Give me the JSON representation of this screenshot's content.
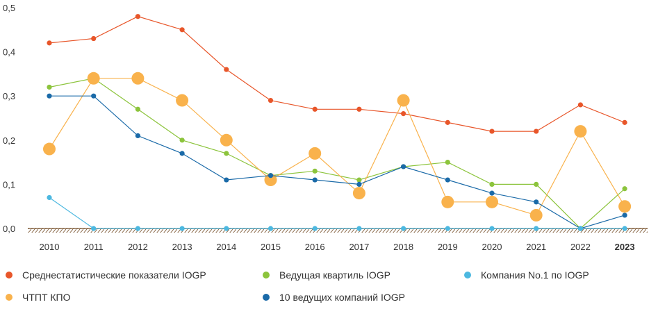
{
  "chart_data": {
    "type": "line",
    "ylim": [
      0,
      0.5
    ],
    "yticks": [
      "0,0",
      "0,1",
      "0,2",
      "0,3",
      "0,4",
      "0,5"
    ],
    "ytick_values": [
      0,
      0.1,
      0.2,
      0.3,
      0.4,
      0.5
    ],
    "categories": [
      "2010",
      "2011",
      "2012",
      "2013",
      "2014",
      "2015",
      "2016",
      "2017",
      "2018",
      "2019",
      "2020",
      "2021",
      "2022",
      "2023"
    ],
    "bold_category": "2023",
    "grid": false,
    "legend_position": "bottom",
    "series": [
      {
        "name": "Среднестатистические показатели IOGP",
        "color": "#e8562a",
        "marker": "small",
        "values": [
          0.42,
          0.43,
          0.48,
          0.45,
          0.36,
          0.29,
          0.27,
          0.27,
          0.26,
          0.24,
          0.22,
          0.22,
          0.28,
          0.24
        ]
      },
      {
        "name": "Ведущая квартиль IOGP",
        "color": "#8cc43c",
        "marker": "small",
        "values": [
          0.32,
          0.34,
          0.27,
          0.2,
          0.17,
          0.12,
          0.13,
          0.11,
          0.14,
          0.15,
          0.1,
          0.1,
          0.0,
          0.09
        ]
      },
      {
        "name": "Компания No.1 по IOGP",
        "color": "#4cb8e0",
        "marker": "small",
        "values": [
          0.07,
          0.0,
          0.0,
          0.0,
          0.0,
          0.0,
          0.0,
          0.0,
          0.0,
          0.0,
          0.0,
          0.0,
          0.0,
          0.0
        ]
      },
      {
        "name": "ЧТПТ КПО",
        "color": "#f9b24c",
        "marker": "large",
        "values": [
          0.18,
          0.34,
          0.34,
          0.29,
          0.2,
          0.11,
          0.17,
          0.08,
          0.29,
          0.06,
          0.06,
          0.03,
          0.22,
          0.05
        ]
      },
      {
        "name": "10 ведущих компаний IOGP",
        "color": "#1a6aa8",
        "marker": "small",
        "values": [
          0.3,
          0.3,
          0.21,
          0.17,
          0.11,
          0.12,
          0.11,
          0.1,
          0.14,
          0.11,
          0.08,
          0.06,
          0.0,
          0.03
        ]
      }
    ]
  },
  "legend": [
    {
      "label": "Среднестатистические показатели IOGP",
      "color": "#e8562a"
    },
    {
      "label": "Ведущая квартиль IOGP",
      "color": "#8cc43c"
    },
    {
      "label": "Компания No.1 по IOGP",
      "color": "#4cb8e0"
    },
    {
      "label": "ЧТПТ КПО",
      "color": "#f9b24c"
    },
    {
      "label": "10 ведущих компаний IOGP",
      "color": "#1a6aa8"
    }
  ],
  "axis_color": "#8a6a4a"
}
